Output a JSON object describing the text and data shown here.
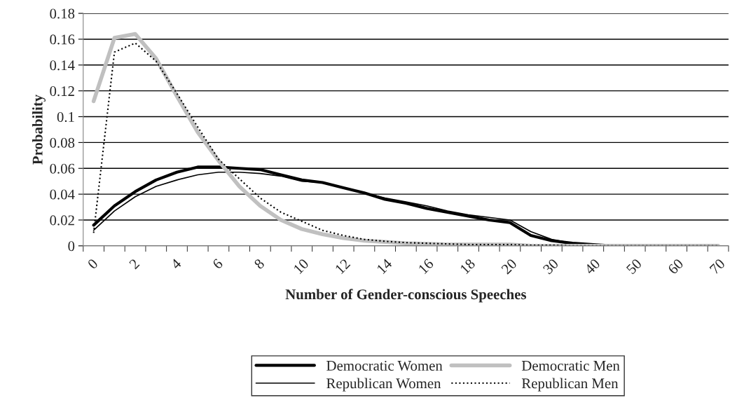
{
  "chart_data": {
    "type": "line",
    "xlabel": "Number of Gender-conscious Speeches",
    "ylabel": "Probability",
    "categories": [
      "0",
      null,
      "2",
      null,
      "4",
      null,
      "6",
      null,
      "8",
      null,
      "10",
      null,
      "12",
      null,
      "14",
      null,
      "16",
      null,
      "18",
      null,
      "20",
      null,
      "30",
      null,
      "40",
      null,
      "50",
      null,
      "60",
      null,
      "70"
    ],
    "series": [
      {
        "name": "Democratic Women",
        "color": "#000000",
        "line_style": "solid",
        "values": [
          0.016,
          0.031,
          0.042,
          0.051,
          0.057,
          0.061,
          0.061,
          0.06,
          0.059,
          0.055,
          0.051,
          0.049,
          0.045,
          0.041,
          0.036,
          0.033,
          0.029,
          0.026,
          0.023,
          0.02,
          0.018,
          0.008,
          0.004,
          0.002,
          0.001,
          0,
          0,
          0,
          0,
          0,
          0
        ]
      },
      {
        "name": "Republican Women",
        "color": "#000000",
        "line_style": "solid",
        "values": [
          0.012,
          0.027,
          0.038,
          0.046,
          0.051,
          0.055,
          0.057,
          0.057,
          0.056,
          0.054,
          0.05,
          0.049,
          0.045,
          0.041,
          0.037,
          0.034,
          0.031,
          0.027,
          0.024,
          0.022,
          0.02,
          0.011,
          0.005,
          0.002,
          0.001,
          0,
          0,
          0,
          0,
          0,
          0
        ]
      },
      {
        "name": "Democratic Men",
        "color": "#c0c0c0",
        "line_style": "solid",
        "values": [
          0.112,
          0.161,
          0.164,
          0.145,
          0.116,
          0.088,
          0.066,
          0.046,
          0.031,
          0.02,
          0.013,
          0.009,
          0.006,
          0.004,
          0.003,
          0.002,
          0.0015,
          0.001,
          0.001,
          0.001,
          0.001,
          0,
          0,
          0,
          0,
          0,
          0,
          0,
          0,
          0,
          0
        ]
      },
      {
        "name": "Republican Men",
        "color": "#000000",
        "line_style": "dotted",
        "values": [
          0.01,
          0.15,
          0.157,
          0.143,
          0.118,
          0.092,
          0.067,
          0.052,
          0.037,
          0.026,
          0.019,
          0.012,
          0.008,
          0.005,
          0.0035,
          0.0025,
          0.002,
          0.0015,
          0.001,
          0.001,
          0.001,
          0.0005,
          0.0005,
          0,
          0,
          0,
          0,
          0,
          0,
          0,
          0
        ]
      }
    ],
    "ylim": [
      0,
      0.18
    ],
    "yticks": [
      0,
      0.02,
      0.04,
      0.06,
      0.08,
      0.1,
      0.12,
      0.14,
      0.16,
      0.18
    ],
    "grid": "y",
    "legend": "bottom",
    "marker": "none"
  }
}
